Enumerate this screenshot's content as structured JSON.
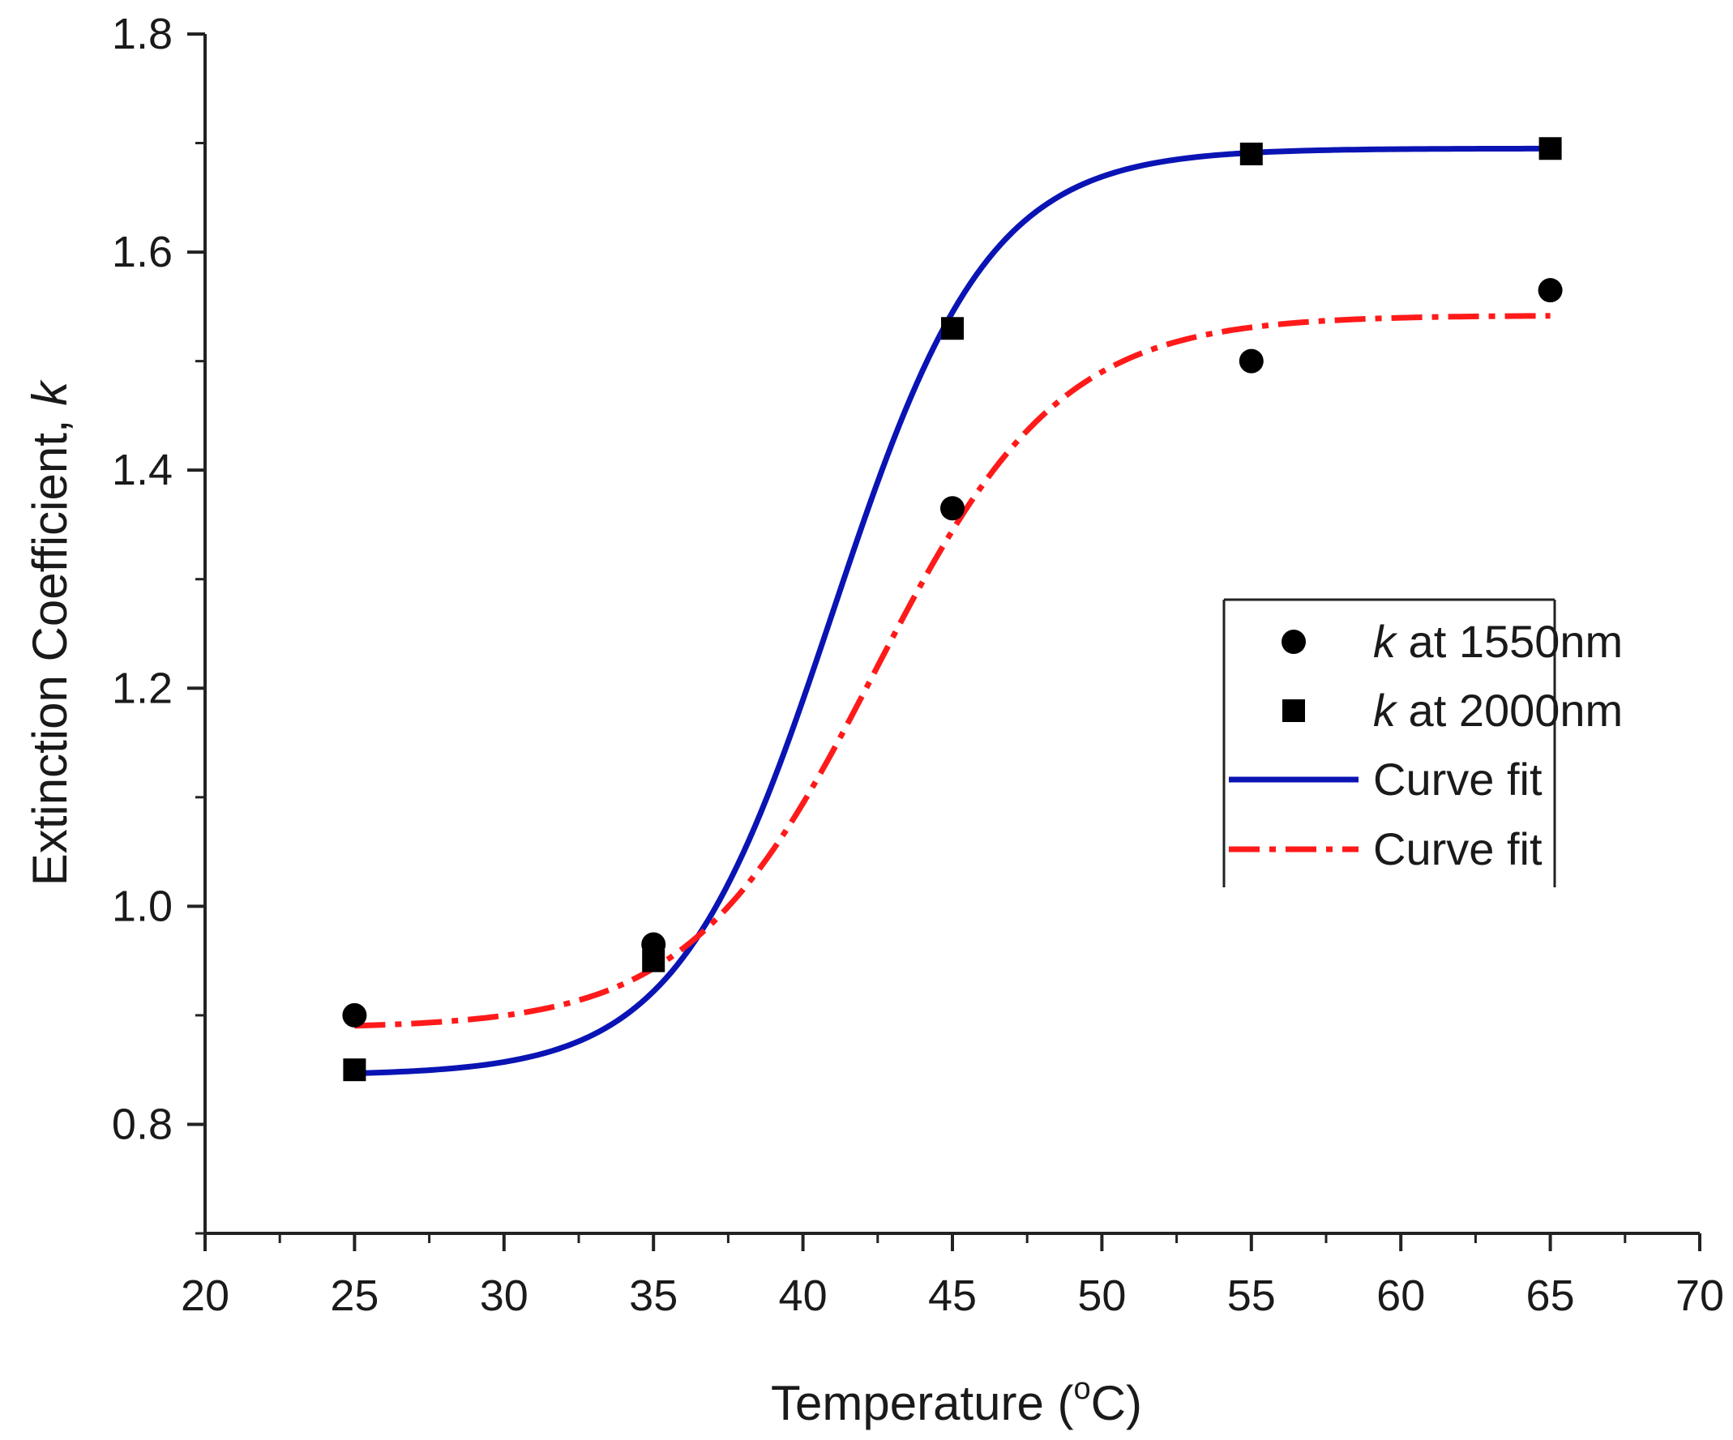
{
  "chart_data": {
    "type": "scatter",
    "title": "",
    "xlabel": "Temperature (°C)",
    "xlabel_parts": {
      "prefix": "Temperature (",
      "degree": "o",
      "suffix": "C)"
    },
    "ylabel": "Extinction Coefficient, k",
    "ylabel_parts": {
      "prefix": "Extinction Coefficient, ",
      "italic": "k"
    },
    "xlim": [
      20,
      70
    ],
    "ylim": [
      0.7,
      1.8
    ],
    "x_ticks": [
      20,
      25,
      30,
      35,
      40,
      45,
      50,
      55,
      60,
      65,
      70
    ],
    "x_tick_labels": [
      "20",
      "25",
      "30",
      "35",
      "40",
      "45",
      "50",
      "55",
      "60",
      "65",
      "70"
    ],
    "y_ticks": [
      0.8,
      1.0,
      1.2,
      1.4,
      1.6,
      1.8
    ],
    "y_tick_labels": [
      "0.8",
      "1.0",
      "1.2",
      "1.4",
      "1.6",
      "1.8"
    ],
    "grid": false,
    "legend_position": "right",
    "series": [
      {
        "name": "k at 1550nm",
        "legend_italic": "k",
        "legend_rest": " at 1550nm",
        "kind": "markers",
        "marker": "circle",
        "color": "#000000",
        "x": [
          25,
          35,
          45,
          55,
          65
        ],
        "y": [
          0.9,
          0.965,
          1.365,
          1.5,
          1.565
        ]
      },
      {
        "name": "k at 2000nm",
        "legend_italic": "k",
        "legend_rest": " at 2000nm",
        "kind": "markers",
        "marker": "square",
        "color": "#000000",
        "x": [
          25,
          35,
          45,
          55,
          65
        ],
        "y": [
          0.85,
          0.95,
          1.53,
          1.69,
          1.695
        ]
      },
      {
        "name": "Curve fit",
        "kind": "line",
        "style": "solid",
        "color": "#0a14b4",
        "fit": "boltzmann",
        "params": {
          "A1": 0.845,
          "A2": 1.695,
          "x0": 41.0,
          "dx": 2.6
        },
        "x_range": [
          25,
          65
        ]
      },
      {
        "name": "Curve fit",
        "kind": "line",
        "style": "dashdot",
        "color": "#ff1a1a",
        "fit": "boltzmann",
        "params": {
          "A1": 0.888,
          "A2": 1.542,
          "x0": 42.4,
          "dx": 3.1
        },
        "x_range": [
          25,
          65
        ]
      }
    ]
  }
}
